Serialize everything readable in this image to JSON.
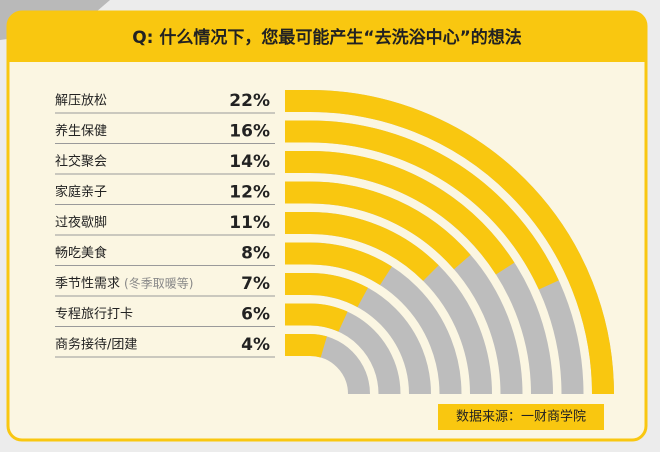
{
  "chart_data": {
    "type": "radial_bar",
    "title": "Q: 什么情况下，您最可能产生“去洗浴中心”的想法",
    "categories": [
      "解压放松",
      "养生保健",
      "社交聚会",
      "家庭亲子",
      "过夜歇脚",
      "畅吃美食",
      "季节性需求",
      "专程旅行打卡",
      "商务接待/团建"
    ],
    "category_notes": [
      null,
      null,
      null,
      null,
      null,
      null,
      "(冬季取暖等)",
      null,
      null
    ],
    "values": [
      22,
      16,
      14,
      12,
      11,
      8,
      7,
      6,
      4
    ],
    "value_labels": [
      "22%",
      "16%",
      "14%",
      "12%",
      "11%",
      "8%",
      "7%",
      "6%",
      "4%"
    ],
    "color": "#f9c710",
    "track_color": "#bdbdbd",
    "source": "数据来源：一财商学院"
  }
}
